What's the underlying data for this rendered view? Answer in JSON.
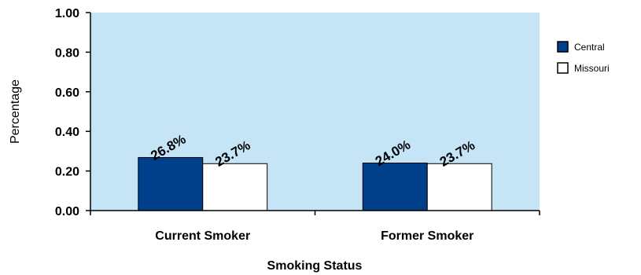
{
  "chart_data": {
    "type": "bar",
    "xlabel": "Smoking Status",
    "ylabel": "Percentage",
    "categories": [
      "Current Smoker",
      "Former Smoker"
    ],
    "series": [
      {
        "name": "Central",
        "values": [
          0.268,
          0.24
        ],
        "labels": [
          "26.8%",
          "24.0%"
        ],
        "color": "#003f8a"
      },
      {
        "name": "Missouri",
        "values": [
          0.237,
          0.237
        ],
        "labels": [
          "23.7%",
          "23.7%"
        ],
        "color": "#ffffff"
      }
    ],
    "ylim": [
      0,
      1.0
    ],
    "yticks": [
      "0.00",
      "0.20",
      "0.40",
      "0.60",
      "0.80",
      "1.00"
    ],
    "legend_position": "right",
    "plot_background": "#c5e5f7",
    "grid": false
  }
}
